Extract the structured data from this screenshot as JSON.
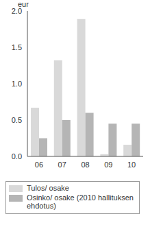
{
  "chart_data": {
    "type": "bar",
    "y_label": "eur",
    "categories": [
      "06",
      "07",
      "08",
      "09",
      "10"
    ],
    "series": [
      {
        "name": "Tulos/ osake",
        "color": "#d9d9d9",
        "values": [
          0.67,
          1.32,
          1.89,
          0.03,
          0.16
        ]
      },
      {
        "name": "Osinko/ osake (2010 hallituksen ehdotus)",
        "color": "#b5b5b5",
        "values": [
          0.25,
          0.5,
          0.6,
          0.45,
          0.45
        ]
      }
    ],
    "ylim": [
      0,
      2
    ],
    "yticks": [
      {
        "value": 0,
        "label": "0.0"
      },
      {
        "value": 0.5,
        "label": "0.5"
      },
      {
        "value": 1,
        "label": "1.0"
      },
      {
        "value": 1.5,
        "label": "1.5"
      },
      {
        "value": 2,
        "label": "2.0"
      }
    ],
    "grid": false,
    "legend": "bottom"
  }
}
